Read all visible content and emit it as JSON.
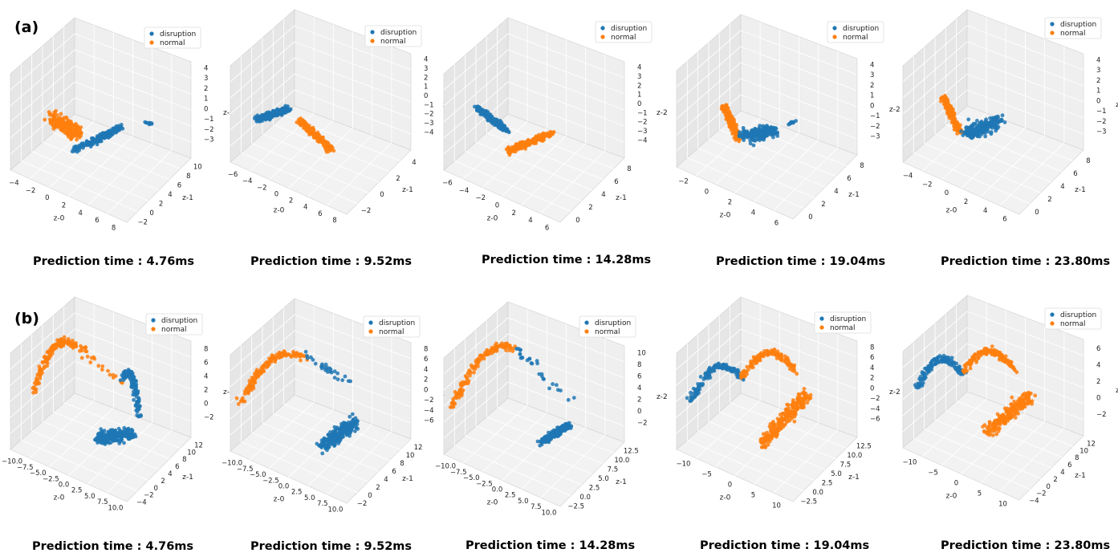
{
  "colors": {
    "disruption": "#1f77b4",
    "normal": "#ff7f0e",
    "pane": "#efefef",
    "pane_side": "#e6e6e6",
    "grid": "#ffffff"
  },
  "panel_labels": [
    "(a)",
    "(b)"
  ],
  "captions": {
    "a": [
      "Prediction time : 4.76ms",
      "Prediction time : 9.52ms",
      "Prediction time : 14.28ms",
      "Prediction time : 19.04ms",
      "Prediction time : 23.80ms"
    ],
    "b": [
      "Prediction time : 4.76ms",
      "Prediction time : 9.52ms",
      "Prediction time : 14.28ms",
      "Prediction time : 19.04ms",
      "Prediction time : 23.80ms"
    ]
  },
  "chart_data": [
    {
      "type": "scatter",
      "panel": "a",
      "prediction_time": "4.76ms",
      "xlabel": "z-0",
      "ylabel": "z-1",
      "zlabel": "z-2",
      "x_ticks": [
        "−4",
        "−2",
        "0",
        "2",
        "4",
        "6",
        "8"
      ],
      "y_ticks": [
        "−2",
        "0",
        "2",
        "4",
        "6",
        "8",
        "10"
      ],
      "z_ticks": [
        "4",
        "3",
        "2",
        "1",
        "0",
        "−1",
        "−2",
        "−3"
      ],
      "legend": [
        "disruption",
        "normal"
      ],
      "legend_position": "top-right",
      "clusters": [
        {
          "series": "normal",
          "shape": "blob",
          "a": [
            -3.5,
            0.5,
            1.2
          ],
          "b": [
            -0.5,
            2.5,
            -1.5
          ]
        },
        {
          "series": "disruption",
          "shape": "elongated",
          "a": [
            0.5,
            0,
            -2.5
          ],
          "b": [
            5,
            6,
            0.5
          ]
        },
        {
          "series": "disruption",
          "shape": "small",
          "a": [
            7,
            9,
            0.5
          ],
          "b": [
            7.8,
            10,
            0
          ]
        }
      ]
    },
    {
      "type": "scatter",
      "panel": "a",
      "prediction_time": "9.52ms",
      "xlabel": "z-0",
      "ylabel": "z-1",
      "zlabel": "z-2",
      "x_ticks": [
        "−6",
        "−4",
        "−2",
        "0",
        "2",
        "4",
        "6",
        "8"
      ],
      "y_ticks": [
        "−2",
        "0",
        "2",
        "4"
      ],
      "z_ticks": [
        "4",
        "3",
        "2",
        "1",
        "0",
        "−1",
        "−2",
        "−3",
        "−4"
      ],
      "legend": [
        "disruption",
        "normal"
      ],
      "legend_position": "top-right",
      "clusters": [
        {
          "series": "disruption",
          "shape": "elongated",
          "a": [
            -6,
            0,
            -1.5
          ],
          "b": [
            -1,
            1,
            2.5
          ]
        },
        {
          "series": "normal",
          "shape": "elongated",
          "a": [
            2,
            -1,
            3
          ],
          "b": [
            5,
            3,
            -3.5
          ]
        }
      ]
    },
    {
      "type": "scatter",
      "panel": "a",
      "prediction_time": "14.28ms",
      "xlabel": "z-0",
      "ylabel": "z-1",
      "zlabel": "z-2",
      "x_ticks": [
        "−6",
        "−4",
        "−2",
        "0",
        "2",
        "4",
        "6"
      ],
      "y_ticks": [
        "0",
        "2",
        "4",
        "6",
        "8"
      ],
      "z_ticks": [
        "4",
        "3",
        "2",
        "1",
        "0",
        "−1",
        "−2",
        "−3",
        "−4"
      ],
      "legend": [
        "disruption",
        "normal"
      ],
      "legend_position": "top-right",
      "clusters": [
        {
          "series": "disruption",
          "shape": "elongated",
          "a": [
            -6,
            2,
            1
          ],
          "b": [
            -2,
            4,
            -2.5
          ]
        },
        {
          "series": "normal",
          "shape": "elongated",
          "a": [
            0,
            1,
            -3.5
          ],
          "b": [
            5,
            5,
            0
          ]
        }
      ]
    },
    {
      "type": "scatter",
      "panel": "a",
      "prediction_time": "19.04ms",
      "xlabel": "z-0",
      "ylabel": "z-1",
      "zlabel": "z-2",
      "x_ticks": [
        "−2",
        "0",
        "2",
        "4",
        "6"
      ],
      "y_ticks": [
        "0",
        "2",
        "4",
        "6",
        "8"
      ],
      "z_ticks": [
        "4",
        "3",
        "2",
        "1",
        "0",
        "−1",
        "−2",
        "−3"
      ],
      "legend": [
        "disruption",
        "normal"
      ],
      "legend_position": "top-right",
      "clusters": [
        {
          "series": "normal",
          "shape": "elongated",
          "a": [
            -3,
            1,
            3
          ],
          "b": [
            -1,
            2,
            -3
          ]
        },
        {
          "series": "disruption",
          "shape": "blob",
          "a": [
            0,
            2,
            -2
          ],
          "b": [
            3,
            5,
            -1
          ]
        },
        {
          "series": "disruption",
          "shape": "small",
          "a": [
            5,
            6,
            0.5
          ],
          "b": [
            6,
            7,
            1
          ]
        }
      ]
    },
    {
      "type": "scatter",
      "panel": "a",
      "prediction_time": "23.80ms",
      "xlabel": "z-0",
      "ylabel": "z-1",
      "zlabel": "z-2",
      "x_ticks": [
        "−4",
        "−2",
        "0",
        "2",
        "4",
        "6"
      ],
      "y_ticks": [
        "0",
        "2",
        "4",
        "6",
        "8"
      ],
      "z_ticks": [
        "4",
        "3",
        "2",
        "1",
        "0",
        "−1",
        "−2",
        "−3"
      ],
      "legend": [
        "disruption",
        "normal"
      ],
      "legend_position": "top-right",
      "clusters": [
        {
          "series": "normal",
          "shape": "elongated",
          "a": [
            -4,
            1,
            3
          ],
          "b": [
            -2,
            2,
            -3
          ]
        },
        {
          "series": "disruption",
          "shape": "blob",
          "a": [
            -0.5,
            2,
            -2.5
          ],
          "b": [
            3,
            5,
            0
          ]
        }
      ]
    },
    {
      "type": "scatter",
      "panel": "b",
      "prediction_time": "4.76ms",
      "xlabel": "z-0",
      "ylabel": "z-1",
      "zlabel": "z-2",
      "x_ticks": [
        "−10.0",
        "−7.5",
        "−5.0",
        "−2.5",
        "0.0",
        "2.5",
        "5.0",
        "7.5",
        "10.0"
      ],
      "y_ticks": [
        "−4",
        "−2",
        "0",
        "2",
        "4",
        "6",
        "8",
        "10",
        "12"
      ],
      "z_ticks": [
        "8",
        "6",
        "4",
        "2",
        "0",
        "−2"
      ],
      "legend": [
        "disruption",
        "normal"
      ],
      "legend_position": "top-right",
      "clusters": [
        {
          "series": "normal",
          "shape": "arc",
          "a": [
            -8,
            2,
            -1
          ],
          "b": [
            -3,
            6,
            8
          ]
        },
        {
          "series": "normal",
          "shape": "scatter",
          "a": [
            -3,
            6,
            8
          ],
          "b": [
            4,
            8,
            3
          ]
        },
        {
          "series": "disruption",
          "shape": "arc",
          "a": [
            4,
            8,
            4
          ],
          "b": [
            8,
            6,
            0
          ]
        },
        {
          "series": "disruption",
          "shape": "blob",
          "a": [
            4,
            1,
            -3
          ],
          "b": [
            8,
            4,
            -2
          ]
        }
      ]
    },
    {
      "type": "scatter",
      "panel": "b",
      "prediction_time": "9.52ms",
      "xlabel": "z-0",
      "ylabel": "z-1",
      "zlabel": "z-2",
      "x_ticks": [
        "−10.0",
        "−7.5",
        "−5.0",
        "−2.5",
        "0.0",
        "2.5",
        "5.0",
        "7.5",
        "10.0"
      ],
      "y_ticks": [
        "−2",
        "0",
        "2",
        "4",
        "6",
        "8",
        "10",
        "12"
      ],
      "z_ticks": [
        "8",
        "6",
        "4",
        "2",
        "0",
        "−2",
        "−4",
        "−6"
      ],
      "legend": [
        "disruption",
        "normal"
      ],
      "legend_position": "top-right",
      "clusters": [
        {
          "series": "normal",
          "shape": "arc",
          "a": [
            -9,
            0,
            -2
          ],
          "b": [
            -1,
            6,
            7
          ]
        },
        {
          "series": "disruption",
          "shape": "scatter",
          "a": [
            -1,
            6,
            7
          ],
          "b": [
            5,
            8,
            4
          ]
        },
        {
          "series": "disruption",
          "shape": "blob",
          "a": [
            4,
            2,
            -5
          ],
          "b": [
            8,
            5,
            0
          ]
        }
      ]
    },
    {
      "type": "scatter",
      "panel": "b",
      "prediction_time": "14.28ms",
      "xlabel": "z-0",
      "ylabel": "z-1",
      "zlabel": "z-2",
      "x_ticks": [
        "−10.0",
        "−7.5",
        "−5.0",
        "−2.5",
        "0.0",
        "2.5",
        "5.0",
        "7.5",
        "10.0"
      ],
      "y_ticks": [
        "−2.5",
        "0.0",
        "2.5",
        "5.0",
        "7.5",
        "10.0",
        "12.5"
      ],
      "z_ticks": [
        "10",
        "8",
        "6",
        "4",
        "2",
        "0",
        "−2"
      ],
      "legend": [
        "disruption",
        "normal"
      ],
      "legend_position": "top-right",
      "clusters": [
        {
          "series": "normal",
          "shape": "arc",
          "a": [
            -9,
            0,
            -2
          ],
          "b": [
            -2,
            6,
            9
          ]
        },
        {
          "series": "disruption",
          "shape": "scatter",
          "a": [
            -2,
            6,
            9
          ],
          "b": [
            6,
            8,
            2
          ]
        },
        {
          "series": "disruption",
          "shape": "elongated",
          "a": [
            5,
            2,
            -3
          ],
          "b": [
            8,
            5,
            0
          ]
        }
      ]
    },
    {
      "type": "scatter",
      "panel": "b",
      "prediction_time": "19.04ms",
      "xlabel": "z-0",
      "ylabel": "z-1",
      "zlabel": "z-2",
      "x_ticks": [
        "−10",
        "−5",
        "0",
        "5",
        "10"
      ],
      "y_ticks": [
        "−2.5",
        "0.0",
        "2.5",
        "5.0",
        "7.5",
        "10.0",
        "12.5"
      ],
      "z_ticks": [
        "8",
        "6",
        "4",
        "2",
        "0",
        "−2",
        "−4",
        "−6"
      ],
      "legend": [
        "disruption",
        "normal"
      ],
      "legend_position": "top-right",
      "clusters": [
        {
          "series": "disruption",
          "shape": "arc",
          "a": [
            -10,
            3,
            -4
          ],
          "b": [
            -3,
            6,
            2
          ]
        },
        {
          "series": "normal",
          "shape": "arc",
          "a": [
            -3,
            6,
            2
          ],
          "b": [
            5,
            8,
            6
          ]
        },
        {
          "series": "normal",
          "shape": "blob",
          "a": [
            3,
            2,
            -5
          ],
          "b": [
            8,
            6,
            4
          ]
        }
      ]
    },
    {
      "type": "scatter",
      "panel": "b",
      "prediction_time": "23.80ms",
      "xlabel": "z-0",
      "ylabel": "z-1",
      "zlabel": "z-2",
      "x_ticks": [
        "−10",
        "−5",
        "0",
        "5",
        "10"
      ],
      "y_ticks": [
        "−4",
        "−2",
        "0",
        "2",
        "4",
        "6",
        "8",
        "10",
        "12"
      ],
      "z_ticks": [
        "6",
        "4",
        "2",
        "0",
        "−2"
      ],
      "legend": [
        "disruption",
        "normal"
      ],
      "legend_position": "top-right",
      "clusters": [
        {
          "series": "disruption",
          "shape": "arc",
          "a": [
            -10,
            3,
            -2
          ],
          "b": [
            -4,
            6,
            2
          ]
        },
        {
          "series": "normal",
          "shape": "arc",
          "a": [
            -4,
            6,
            2
          ],
          "b": [
            4,
            8,
            5
          ]
        },
        {
          "series": "normal",
          "shape": "blob",
          "a": [
            3,
            2,
            -3
          ],
          "b": [
            8,
            5,
            4
          ]
        }
      ]
    }
  ]
}
